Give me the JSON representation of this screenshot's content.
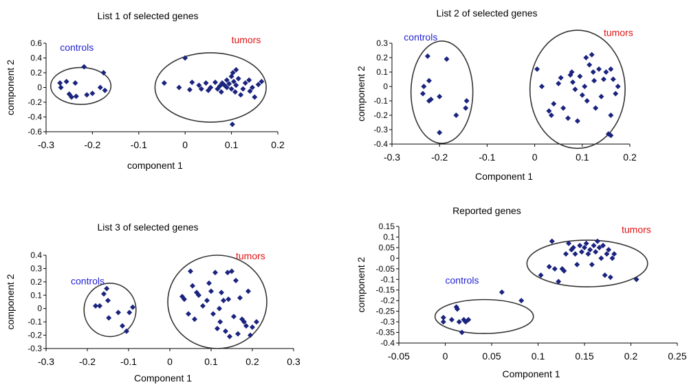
{
  "colors": {
    "marker": "#1a237e",
    "controls": "#1f1fd6",
    "tumors": "#e01414",
    "axis": "#000000",
    "ellipse": "#333333"
  },
  "chart_data": [
    {
      "type": "scatter",
      "title": "List 1 of selected genes",
      "xlabel": "component 1",
      "ylabel": "component 2",
      "xlim": [
        -0.3,
        0.2
      ],
      "ylim": [
        -0.6,
        0.6
      ],
      "xticks": [
        "-0.3",
        "-0.2",
        "-0.1",
        "0",
        "0.1",
        "0.2"
      ],
      "yticks": [
        "0.6",
        "0.4",
        "0.2",
        "0",
        "-0.2",
        "-0.4",
        "-0.6"
      ],
      "annotations": [
        {
          "text": "controls",
          "x": -0.27,
          "y": 0.5,
          "color": "#1f1fd6"
        },
        {
          "text": "tumors",
          "x": 0.1,
          "y": 0.6,
          "color": "#e01414"
        }
      ],
      "ellipses": [
        {
          "cx": -0.225,
          "cy": 0.02,
          "rx": 0.065,
          "ry": 0.25
        },
        {
          "cx": 0.055,
          "cy": 0.0,
          "rx": 0.12,
          "ry": 0.47
        }
      ],
      "points": [
        [
          -0.27,
          0.06
        ],
        [
          -0.268,
          0.0
        ],
        [
          -0.256,
          0.08
        ],
        [
          -0.25,
          -0.09
        ],
        [
          -0.245,
          -0.13
        ],
        [
          -0.237,
          0.06
        ],
        [
          -0.235,
          -0.12
        ],
        [
          -0.218,
          0.28
        ],
        [
          -0.212,
          -0.1
        ],
        [
          -0.2,
          -0.08
        ],
        [
          -0.183,
          0.0
        ],
        [
          -0.176,
          0.2
        ],
        [
          -0.173,
          -0.04
        ],
        [
          -0.045,
          0.06
        ],
        [
          -0.013,
          0.0
        ],
        [
          0.0,
          0.4
        ],
        [
          0.01,
          -0.03
        ],
        [
          0.015,
          0.07
        ],
        [
          0.03,
          0.03
        ],
        [
          0.035,
          -0.02
        ],
        [
          0.045,
          0.06
        ],
        [
          0.05,
          -0.04
        ],
        [
          0.055,
          0.0
        ],
        [
          0.065,
          0.07
        ],
        [
          0.07,
          -0.02
        ],
        [
          0.075,
          0.02
        ],
        [
          0.078,
          -0.06
        ],
        [
          0.08,
          0.06
        ],
        [
          0.085,
          0.03
        ],
        [
          0.09,
          0.1
        ],
        [
          0.09,
          0.0
        ],
        [
          0.095,
          0.05
        ],
        [
          0.1,
          0.15
        ],
        [
          0.1,
          -0.02
        ],
        [
          0.103,
          0.2
        ],
        [
          0.105,
          0.08
        ],
        [
          0.108,
          -0.06
        ],
        [
          0.11,
          0.24
        ],
        [
          0.11,
          0.03
        ],
        [
          0.115,
          0.12
        ],
        [
          0.12,
          -0.1
        ],
        [
          0.125,
          -0.02
        ],
        [
          0.13,
          0.06
        ],
        [
          0.138,
          0.1
        ],
        [
          0.14,
          -0.05
        ],
        [
          0.145,
          0.0
        ],
        [
          0.15,
          -0.13
        ],
        [
          0.158,
          0.04
        ],
        [
          0.165,
          0.08
        ],
        [
          0.102,
          -0.5
        ]
      ]
    },
    {
      "type": "scatter",
      "title": "List 2 of selected genes",
      "xlabel": "Component 1",
      "ylabel": "component 2",
      "xlim": [
        -0.3,
        0.2
      ],
      "ylim": [
        -0.4,
        0.3
      ],
      "xticks": [
        "-0.3",
        "-0.2",
        "-0.1",
        "0",
        "0.1",
        "0.2"
      ],
      "yticks": [
        "0.3",
        "0.2",
        "0.1",
        "0",
        "-0.1",
        "-0.2",
        "-0.3",
        "-0.4"
      ],
      "annotations": [
        {
          "text": "controls",
          "x": -0.275,
          "y": 0.32,
          "color": "#1f1fd6"
        },
        {
          "text": "tumors",
          "x": 0.145,
          "y": 0.35,
          "color": "#e01414"
        }
      ],
      "ellipses": [
        {
          "cx": -0.195,
          "cy": -0.04,
          "rx": 0.065,
          "ry": 0.355
        },
        {
          "cx": 0.09,
          "cy": -0.02,
          "rx": 0.1,
          "ry": 0.41
        }
      ],
      "points": [
        [
          -0.225,
          0.21
        ],
        [
          -0.222,
          0.04
        ],
        [
          -0.235,
          -0.05
        ],
        [
          -0.233,
          0.0
        ],
        [
          -0.222,
          -0.1
        ],
        [
          -0.218,
          -0.09
        ],
        [
          -0.2,
          -0.07
        ],
        [
          -0.2,
          -0.32
        ],
        [
          -0.185,
          0.19
        ],
        [
          -0.165,
          -0.2
        ],
        [
          -0.145,
          -0.15
        ],
        [
          -0.143,
          -0.1
        ],
        [
          0.005,
          0.12
        ],
        [
          0.015,
          0.0
        ],
        [
          0.03,
          -0.17
        ],
        [
          0.035,
          -0.2
        ],
        [
          0.04,
          -0.12
        ],
        [
          0.05,
          0.02
        ],
        [
          0.055,
          0.06
        ],
        [
          0.06,
          -0.15
        ],
        [
          0.07,
          -0.22
        ],
        [
          0.075,
          0.08
        ],
        [
          0.078,
          0.1
        ],
        [
          0.08,
          0.03
        ],
        [
          0.085,
          -0.02
        ],
        [
          0.09,
          -0.24
        ],
        [
          0.095,
          0.07
        ],
        [
          0.1,
          -0.06
        ],
        [
          0.105,
          0.0
        ],
        [
          0.108,
          0.2
        ],
        [
          0.11,
          -0.1
        ],
        [
          0.115,
          0.15
        ],
        [
          0.12,
          0.22
        ],
        [
          0.123,
          0.1
        ],
        [
          0.125,
          0.04
        ],
        [
          0.128,
          -0.15
        ],
        [
          0.135,
          0.12
        ],
        [
          0.14,
          -0.07
        ],
        [
          0.145,
          0.05
        ],
        [
          0.15,
          0.1
        ],
        [
          0.155,
          -0.33
        ],
        [
          0.16,
          -0.34
        ],
        [
          0.165,
          0.05
        ],
        [
          0.17,
          -0.05
        ],
        [
          0.175,
          0.0
        ],
        [
          0.16,
          0.12
        ],
        [
          0.16,
          -0.2
        ]
      ]
    },
    {
      "type": "scatter",
      "title": "List 3 of selected genes",
      "xlabel": "Component 1",
      "ylabel": "component 2",
      "xlim": [
        -0.3,
        0.3
      ],
      "ylim": [
        -0.3,
        0.4
      ],
      "xticks": [
        "-0.3",
        "-0.2",
        "-0.1",
        "0",
        "0.1",
        "0.2",
        "0.3"
      ],
      "yticks": [
        "0.4",
        "0.3",
        "0.2",
        "0.1",
        "0",
        "-0.1",
        "-0.2",
        "-0.3"
      ],
      "annotations": [
        {
          "text": "controls",
          "x": -0.24,
          "y": 0.18,
          "color": "#1f1fd6"
        },
        {
          "text": "tumors",
          "x": 0.16,
          "y": 0.37,
          "color": "#e01414"
        }
      ],
      "ellipses": [
        {
          "cx": -0.145,
          "cy": -0.01,
          "rx": 0.063,
          "ry": 0.2
        },
        {
          "cx": 0.115,
          "cy": 0.05,
          "rx": 0.12,
          "ry": 0.35
        }
      ],
      "points": [
        [
          -0.18,
          0.02
        ],
        [
          -0.17,
          0.02
        ],
        [
          -0.16,
          0.11
        ],
        [
          -0.15,
          0.06
        ],
        [
          -0.153,
          0.15
        ],
        [
          -0.148,
          -0.07
        ],
        [
          -0.125,
          -0.03
        ],
        [
          -0.115,
          -0.13
        ],
        [
          -0.105,
          -0.17
        ],
        [
          -0.098,
          -0.03
        ],
        [
          -0.09,
          0.01
        ],
        [
          0.03,
          0.09
        ],
        [
          0.035,
          0.07
        ],
        [
          0.045,
          -0.04
        ],
        [
          0.05,
          0.28
        ],
        [
          0.055,
          0.17
        ],
        [
          0.06,
          -0.08
        ],
        [
          0.065,
          0.12
        ],
        [
          0.07,
          0.1
        ],
        [
          0.08,
          0.02
        ],
        [
          0.09,
          0.06
        ],
        [
          0.095,
          0.19
        ],
        [
          0.1,
          0.13
        ],
        [
          0.105,
          -0.04
        ],
        [
          0.11,
          0.27
        ],
        [
          0.115,
          -0.15
        ],
        [
          0.12,
          0.0
        ],
        [
          0.122,
          -0.1
        ],
        [
          0.125,
          0.12
        ],
        [
          0.13,
          0.06
        ],
        [
          0.135,
          -0.17
        ],
        [
          0.14,
          0.27
        ],
        [
          0.142,
          0.07
        ],
        [
          0.145,
          -0.21
        ],
        [
          0.15,
          0.28
        ],
        [
          0.155,
          -0.06
        ],
        [
          0.16,
          0.21
        ],
        [
          0.165,
          -0.19
        ],
        [
          0.17,
          0.08
        ],
        [
          0.175,
          -0.08
        ],
        [
          0.18,
          -0.1
        ],
        [
          0.185,
          -0.13
        ],
        [
          0.195,
          -0.2
        ],
        [
          0.2,
          -0.14
        ],
        [
          0.21,
          -0.1
        ],
        [
          0.19,
          0.13
        ]
      ]
    },
    {
      "type": "scatter",
      "title": "Reported genes",
      "xlabel": "Component 1",
      "ylabel": "component 2",
      "xlim": [
        -0.05,
        0.25
      ],
      "ylim": [
        -0.4,
        0.15
      ],
      "xticks": [
        "-0.05",
        "0",
        "0.05",
        "0.1",
        "0.15",
        "0.2",
        "0.25"
      ],
      "yticks": [
        "0.15",
        "0.1",
        "0.05",
        "0",
        "-0.05",
        "-0.1",
        "-0.15",
        "-0.2",
        "-0.25",
        "-0.3",
        "-0.35",
        "-0.4"
      ],
      "annotations": [
        {
          "text": "controls",
          "x": 0.0,
          "y": -0.12,
          "color": "#1f1fd6"
        },
        {
          "text": "tumors",
          "x": 0.19,
          "y": 0.12,
          "color": "#e01414"
        }
      ],
      "ellipses": [
        {
          "cx": 0.042,
          "cy": -0.275,
          "rx": 0.053,
          "ry": 0.08
        },
        {
          "cx": 0.153,
          "cy": -0.025,
          "rx": 0.065,
          "ry": 0.11
        }
      ],
      "points": [
        [
          -0.002,
          -0.28
        ],
        [
          -0.002,
          -0.3
        ],
        [
          0.007,
          -0.29
        ],
        [
          0.012,
          -0.23
        ],
        [
          0.013,
          -0.24
        ],
        [
          0.015,
          -0.3
        ],
        [
          0.018,
          -0.35
        ],
        [
          0.02,
          -0.29
        ],
        [
          0.022,
          -0.3
        ],
        [
          0.025,
          -0.29
        ],
        [
          0.061,
          -0.16
        ],
        [
          0.082,
          -0.2
        ],
        [
          0.103,
          -0.08
        ],
        [
          0.112,
          -0.04
        ],
        [
          0.115,
          0.08
        ],
        [
          0.118,
          -0.05
        ],
        [
          0.122,
          -0.11
        ],
        [
          0.126,
          -0.05
        ],
        [
          0.128,
          -0.06
        ],
        [
          0.13,
          0.02
        ],
        [
          0.133,
          0.07
        ],
        [
          0.136,
          0.04
        ],
        [
          0.138,
          0.05
        ],
        [
          0.14,
          0.02
        ],
        [
          0.142,
          -0.03
        ],
        [
          0.145,
          0.06
        ],
        [
          0.147,
          0.03
        ],
        [
          0.15,
          0.05
        ],
        [
          0.152,
          0.07
        ],
        [
          0.154,
          0.02
        ],
        [
          0.156,
          0.04
        ],
        [
          0.158,
          -0.03
        ],
        [
          0.16,
          0.06
        ],
        [
          0.162,
          0.03
        ],
        [
          0.164,
          0.08
        ],
        [
          0.166,
          0.05
        ],
        [
          0.168,
          0.0
        ],
        [
          0.17,
          0.06
        ],
        [
          0.172,
          -0.08
        ],
        [
          0.174,
          0.02
        ],
        [
          0.176,
          0.04
        ],
        [
          0.178,
          -0.09
        ],
        [
          0.18,
          0.0
        ],
        [
          0.182,
          0.02
        ],
        [
          0.206,
          -0.1
        ]
      ]
    }
  ]
}
